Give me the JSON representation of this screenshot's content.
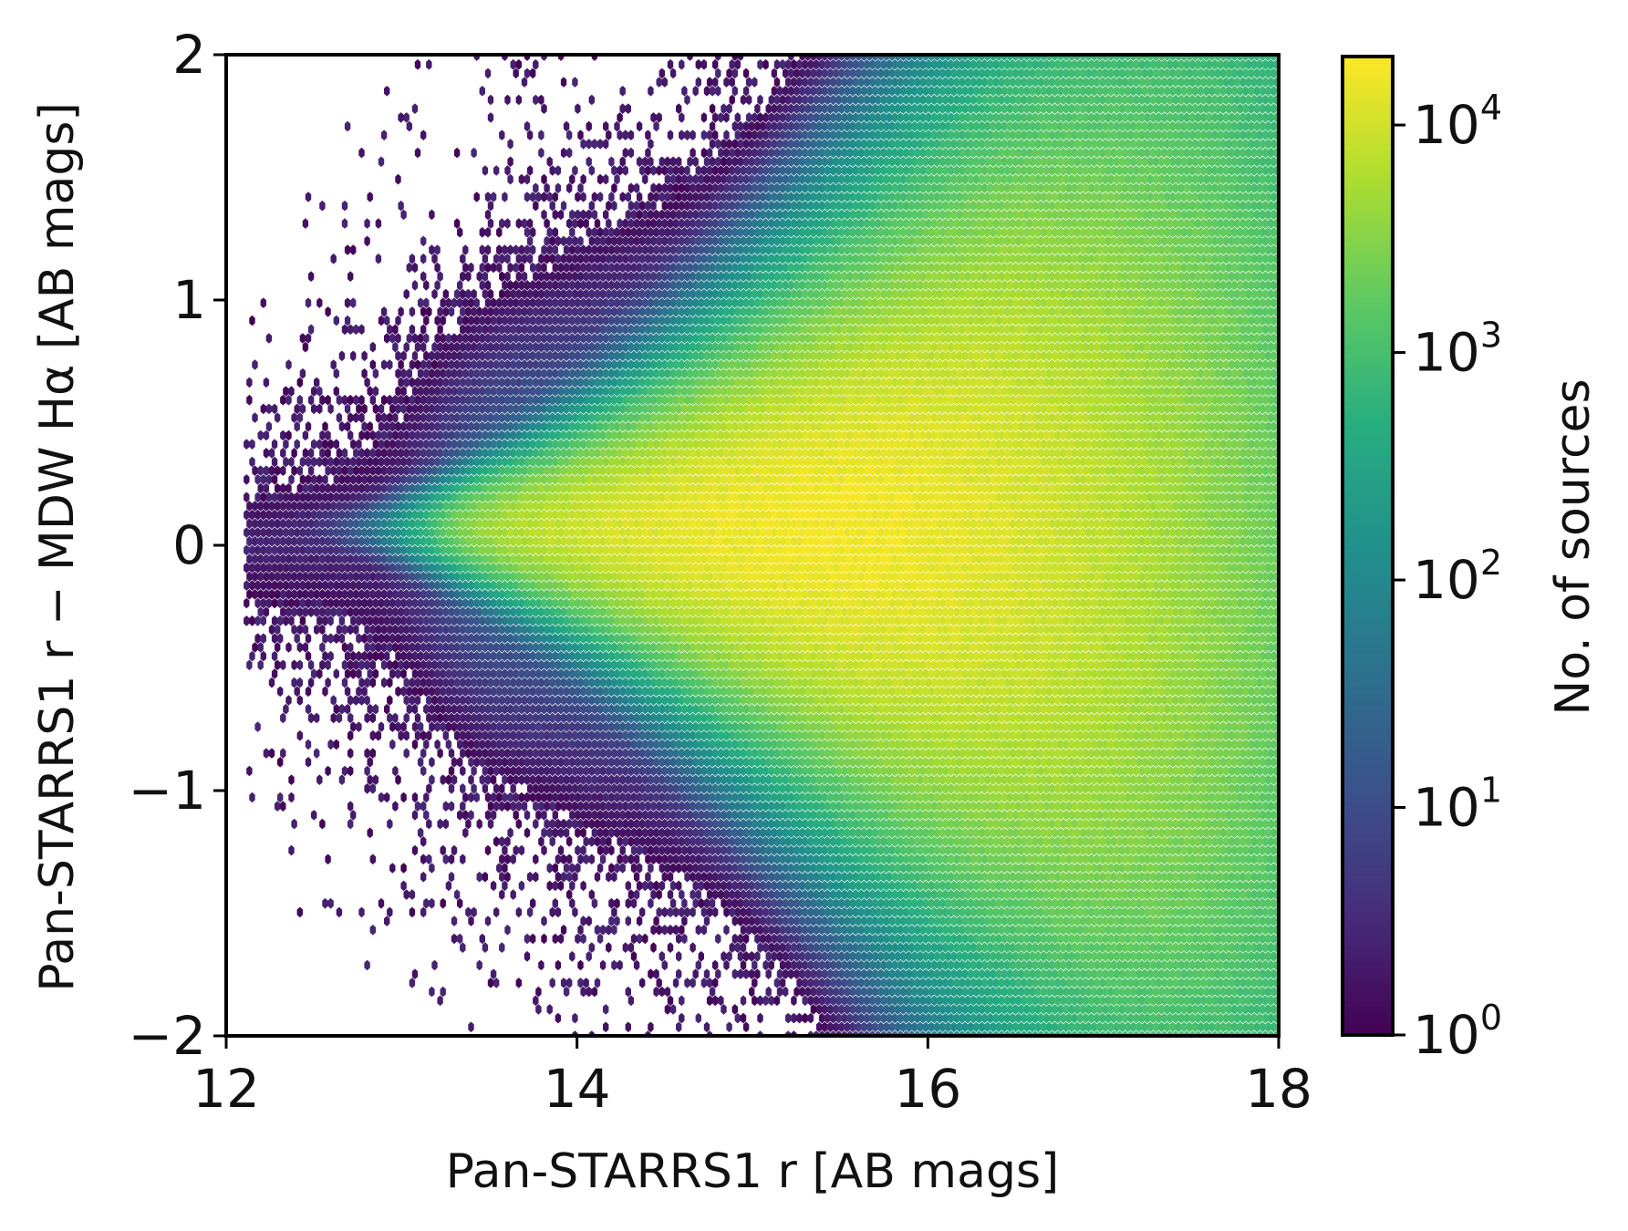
{
  "chart_data": {
    "type": "heatmap",
    "subtype": "hexbin",
    "xlabel": "Pan-STARRS1 r [AB mags]",
    "ylabel": "Pan-STARRS1 r − MDW Hα [AB mags]",
    "xlim": [
      12,
      18
    ],
    "ylim": [
      -2,
      2
    ],
    "xticks": [
      {
        "value": 12,
        "label": "12"
      },
      {
        "value": 14,
        "label": "14"
      },
      {
        "value": 16,
        "label": "16"
      },
      {
        "value": 18,
        "label": "18"
      }
    ],
    "yticks": [
      {
        "value": -2,
        "label": "−2"
      },
      {
        "value": -1,
        "label": "−1"
      },
      {
        "value": 0,
        "label": "0"
      },
      {
        "value": 1,
        "label": "1"
      },
      {
        "value": 2,
        "label": "2"
      }
    ],
    "colorbar": {
      "label": "No. of sources",
      "scale": "log",
      "colormap": "viridis",
      "range": [
        1,
        20000
      ],
      "ticks": [
        {
          "value": 1,
          "base": "10",
          "exp": "0"
        },
        {
          "value": 10,
          "base": "10",
          "exp": "1"
        },
        {
          "value": 100,
          "base": "10",
          "exp": "2"
        },
        {
          "value": 1000,
          "base": "10",
          "exp": "3"
        },
        {
          "value": 10000,
          "base": "10",
          "exp": "4"
        }
      ]
    },
    "density_model": {
      "core_peak_count": 17000,
      "core_center_x": 15.4,
      "core_center_y": 0.07,
      "envelope_left_edge_x": 13.3,
      "envelope_far_left_x": 12.1,
      "max_spread_y": 1.9
    },
    "grid": false,
    "legend": "none"
  }
}
